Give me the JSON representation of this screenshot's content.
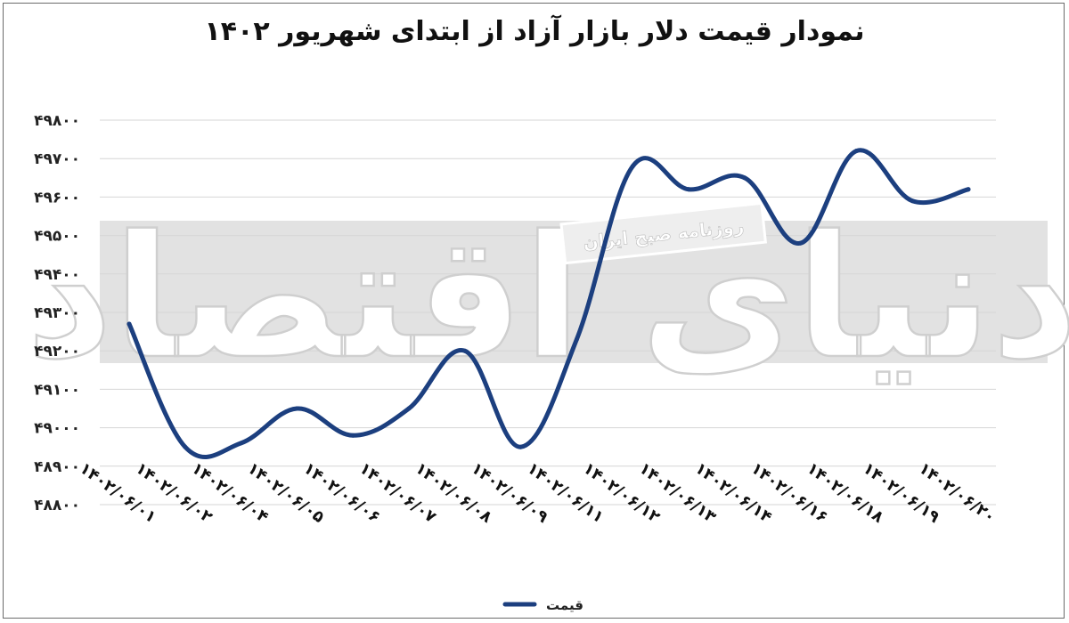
{
  "chart_data": {
    "type": "line",
    "title": "نمودار قیمت دلار بازار آزاد از ابتدای شهریور ۱۴۰۲",
    "categories": [
      "۱۴۰۲/۰۶/۰۱",
      "۱۴۰۲/۰۶/۰۲",
      "۱۴۰۲/۰۶/۰۴",
      "۱۴۰۲/۰۶/۰۵",
      "۱۴۰۲/۰۶/۰۶",
      "۱۴۰۲/۰۶/۰۷",
      "۱۴۰۲/۰۶/۰۸",
      "۱۴۰۲/۰۶/۰۹",
      "۱۴۰۲/۰۶/۱۱",
      "۱۴۰۲/۰۶/۱۲",
      "۱۴۰۲/۰۶/۱۳",
      "۱۴۰۲/۰۶/۱۴",
      "۱۴۰۲/۰۶/۱۶",
      "۱۴۰۲/۰۶/۱۸",
      "۱۴۰۲/۰۶/۱۹",
      "۱۴۰۲/۰۶/۲۰"
    ],
    "series": [
      {
        "name": "قیمت",
        "color": "#1c3f7f",
        "values": [
          49270,
          48950,
          48960,
          49050,
          48980,
          49050,
          49200,
          48950,
          49230,
          49680,
          49620,
          49650,
          49480,
          49720,
          49590,
          49620
        ]
      }
    ],
    "ylim": [
      48800,
      49800
    ],
    "yticks": [
      48800,
      48900,
      49000,
      49100,
      49200,
      49300,
      49400,
      49500,
      49600,
      49700,
      49800
    ],
    "ytick_labels": [
      "۴۸۸۰۰",
      "۴۸۹۰۰",
      "۴۹۰۰۰",
      "۴۹۱۰۰",
      "۴۹۲۰۰",
      "۴۹۳۰۰",
      "۴۹۴۰۰",
      "۴۹۵۰۰",
      "۴۹۶۰۰",
      "۴۹۷۰۰",
      "۴۹۸۰۰"
    ],
    "grid": true,
    "legend": "bottom-center",
    "xlabel": "",
    "ylabel": ""
  },
  "watermark": {
    "brand": "دنیای اقتصاد",
    "banner": "روزنامه صبح ایران"
  }
}
